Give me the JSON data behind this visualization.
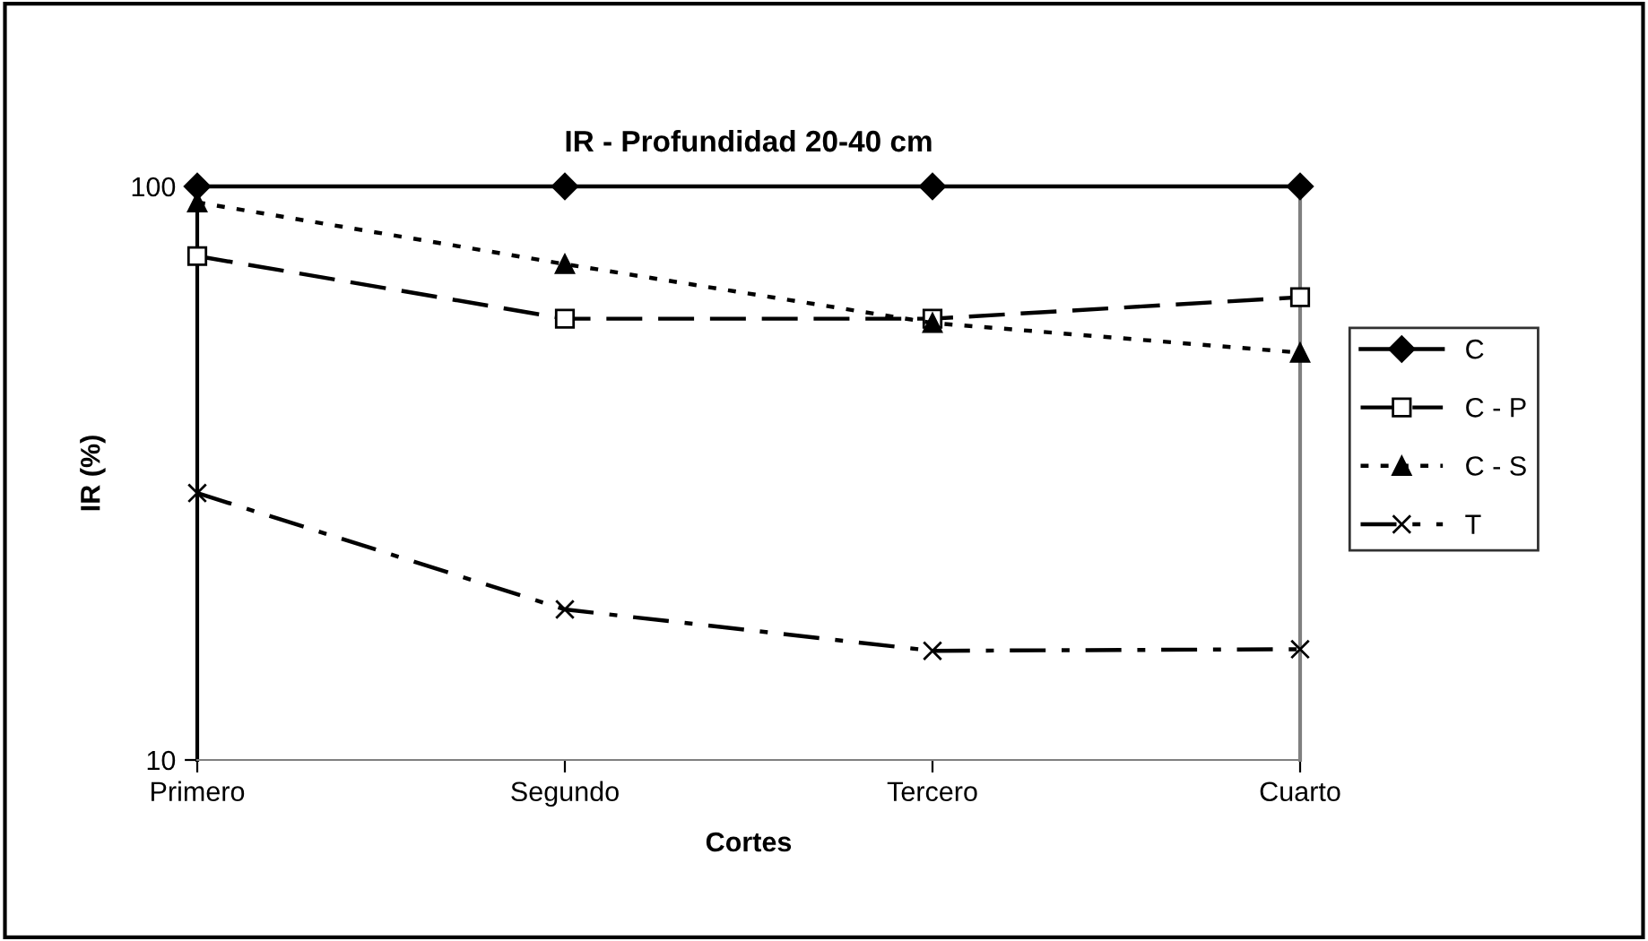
{
  "chart_data": {
    "type": "line",
    "title": "IR - Profundidad 20-40 cm",
    "xlabel": "Cortes",
    "ylabel": "IR (%)",
    "categories": [
      "Primero",
      "Segundo",
      "Tercero",
      "Cuarto"
    ],
    "log": true,
    "ylim": [
      10,
      100
    ],
    "yticks": [
      10,
      100
    ],
    "grid": false,
    "legend": "right",
    "series": [
      {
        "name": "C",
        "color": "#000000",
        "values": [
          100,
          100,
          100,
          100
        ],
        "marker": "diamond",
        "line_style": "solid"
      },
      {
        "name": "C - P",
        "color": "#000000",
        "values": [
          75.6,
          58.8,
          58.8,
          64.1
        ],
        "marker": "square",
        "line_style": "dashed"
      },
      {
        "name": "C - S",
        "color": "#000000",
        "values": [
          93.8,
          73.2,
          57.8,
          51.3
        ],
        "marker": "triangle",
        "line_style": "dotted"
      },
      {
        "name": "T",
        "color": "#000000",
        "values": [
          29.2,
          18.3,
          15.5,
          15.6
        ],
        "marker": "cross",
        "line_style": "dashdot"
      }
    ]
  }
}
